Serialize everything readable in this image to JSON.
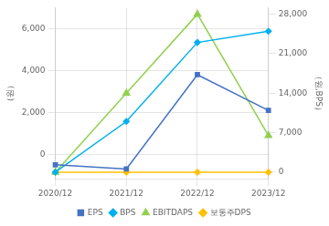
{
  "chart_data": {
    "type": "line",
    "categories": [
      "2020/12",
      "2021/12",
      "2022/12",
      "2023/12"
    ],
    "series": [
      {
        "name": "EPS",
        "color": "#4472c4",
        "marker": "square",
        "axis": "y",
        "values": [
          -500,
          -700,
          3800,
          2100
        ]
      },
      {
        "name": "BPS",
        "color": "#00b0f0",
        "marker": "diamond",
        "axis": "y2",
        "values": [
          0,
          9000,
          23000,
          25000
        ]
      },
      {
        "name": "EBITDAPS",
        "color": "#92d050",
        "marker": "triangle",
        "axis": "y2",
        "values": [
          0,
          14000,
          28000,
          6500
        ]
      },
      {
        "name": "보통주DPS",
        "color": "#ffc000",
        "marker": "diamond",
        "axis": "y2",
        "values": [
          0,
          0,
          0,
          0
        ]
      }
    ],
    "ylabel": "（원）",
    "y2label": "（원,BPS）",
    "ylim": [
      -1166.67,
      7000
    ],
    "yticks": [
      0,
      {
        "value": 2000,
        "label": "2,000"
      },
      {
        "value": 4000,
        "label": "4,000"
      },
      {
        "value": 6000,
        "label": "6,000"
      }
    ],
    "y2lim": [
      -1166.67,
      29167
    ],
    "y2ticks": [
      0,
      {
        "value": 7000,
        "label": "7,000"
      },
      {
        "value": 14000,
        "label": "14,000"
      },
      {
        "value": 21000,
        "label": "21,000"
      },
      {
        "value": 28000,
        "label": "28,000"
      }
    ],
    "grid": true,
    "legend": "bottom"
  }
}
